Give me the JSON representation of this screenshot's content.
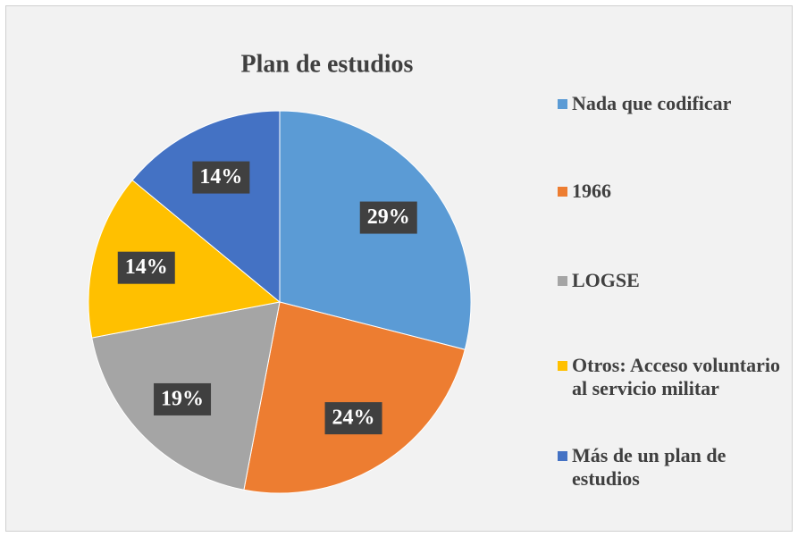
{
  "chart_data": {
    "type": "pie",
    "title": "Plan de estudios",
    "categories": [
      "Nada que codificar",
      "1966",
      "LOGSE",
      "Otros: Acceso voluntario al servicio militar",
      "Más de un plan de estudios"
    ],
    "values": [
      29,
      24,
      19,
      14,
      14
    ],
    "value_labels": [
      "29%",
      "24%",
      "19%",
      "14%",
      "14%"
    ],
    "colors": [
      "#5b9bd5",
      "#ed7d31",
      "#a5a5a5",
      "#ffc000",
      "#4472c4"
    ],
    "legend": "right"
  }
}
